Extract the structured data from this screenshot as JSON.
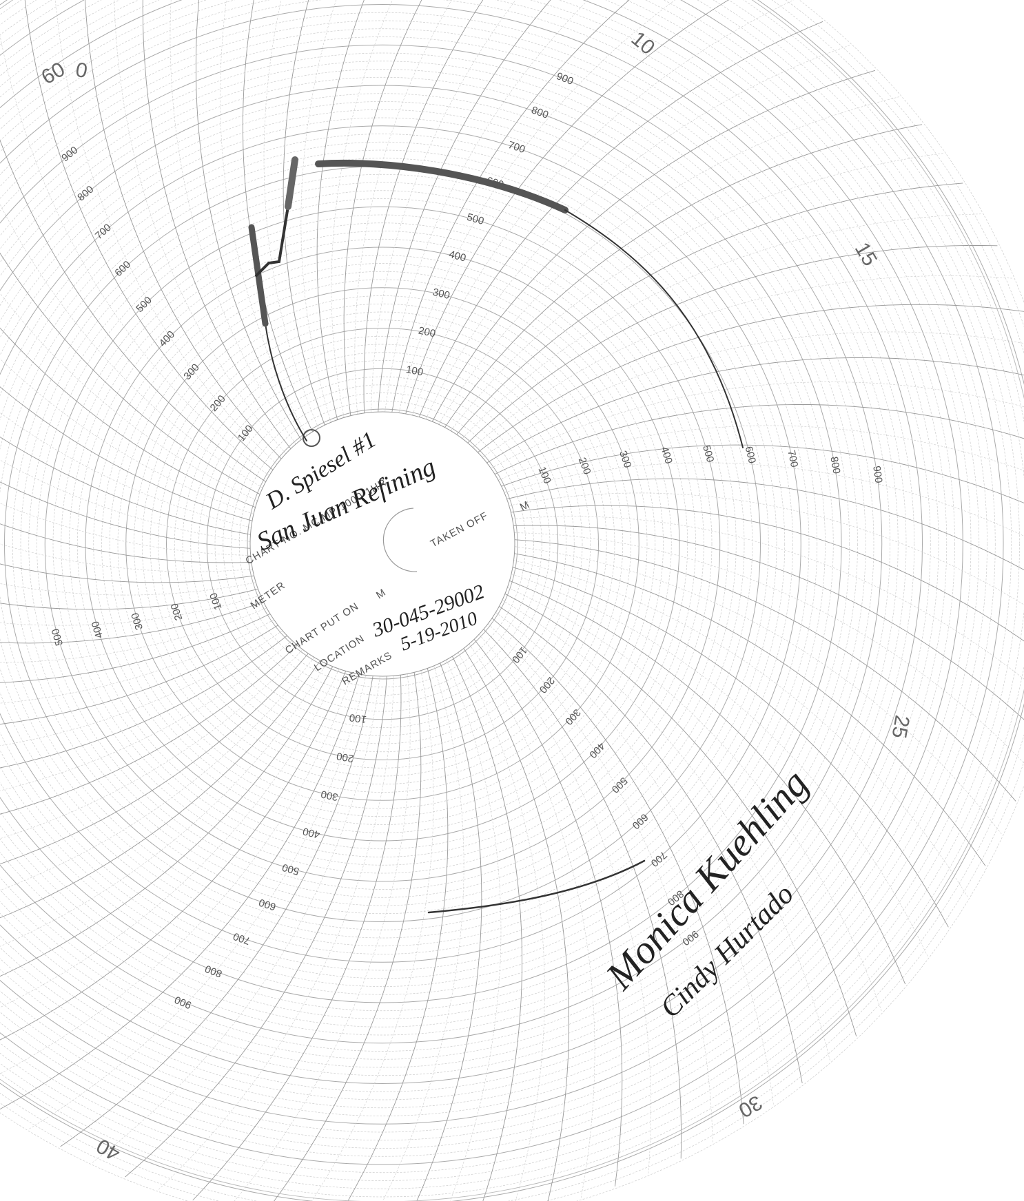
{
  "dial": {
    "minute_labels": [
      "60",
      "0",
      "10",
      "15",
      "25",
      "30",
      "40"
    ],
    "scale_arms": [
      [
        "100",
        "200",
        "300",
        "400",
        "500",
        "600",
        "700",
        "800",
        "900"
      ],
      [
        "100",
        "200",
        "300",
        "400",
        "500",
        "600",
        "700",
        "800",
        "900"
      ],
      [
        "100",
        "200",
        "300",
        "400",
        "500",
        "600",
        "700",
        "800",
        "900"
      ],
      [
        "100",
        "200",
        "300",
        "400",
        "500"
      ],
      [
        "100",
        "200",
        "300",
        "400",
        "500",
        "600",
        "700",
        "800",
        "900"
      ],
      [
        "100",
        "200",
        "300",
        "400",
        "500",
        "600",
        "700",
        "800",
        "900"
      ]
    ]
  },
  "form": {
    "chart_no": "CHART NO. MC MP-1000-1HR",
    "taken_off": "TAKEN OFF",
    "taken_off_unit": "M",
    "meter": "METER",
    "chart_put_on": "CHART PUT ON",
    "put_on_unit": "M",
    "location": "LOCATION",
    "remarks": "REMARKS"
  },
  "handwriting": {
    "meter": "D. Spiesel #1",
    "company": "San Juan Refining",
    "location": "30-045-29002",
    "date": "5-19-2010",
    "signature_1": "Monica Kuehling",
    "signature_2": "Cindy Hurtado"
  }
}
